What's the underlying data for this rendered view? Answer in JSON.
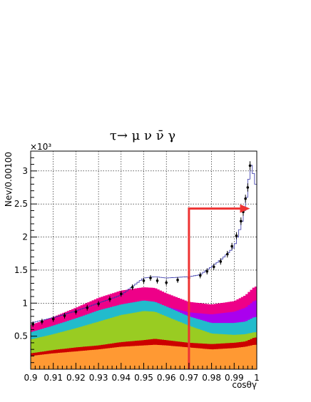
{
  "chart_data": {
    "type": "area",
    "title": "τ→ μ ν ν̄ γ",
    "xlabel": "cosθγ",
    "ylabel": "Nev/0.00100",
    "y_multiplier": "×10³",
    "xlim": [
      0.9,
      1.0
    ],
    "ylim": [
      0,
      3.3
    ],
    "grid": true,
    "x_ticks": [
      "0.9",
      "0.91",
      "0.92",
      "0.93",
      "0.94",
      "0.95",
      "0.96",
      "0.97",
      "0.98",
      "0.99",
      "1"
    ],
    "y_ticks": [
      "0.5",
      "1",
      "1.5",
      "2",
      "2.5",
      "3"
    ],
    "x": [
      0.9,
      0.91,
      0.92,
      0.93,
      0.94,
      0.95,
      0.955,
      0.96,
      0.97,
      0.98,
      0.99,
      0.995,
      0.999
    ],
    "stack_colors": [
      "#ff9933",
      "#cc0000",
      "#99cc22",
      "#22bbcc",
      "#aa00ee",
      "#ee0088"
    ],
    "stack_tops": [
      [
        0.2,
        0.24,
        0.27,
        0.3,
        0.34,
        0.36,
        0.37,
        0.36,
        0.33,
        0.3,
        0.32,
        0.34,
        0.37
      ],
      [
        0.24,
        0.29,
        0.33,
        0.36,
        0.41,
        0.44,
        0.46,
        0.44,
        0.4,
        0.38,
        0.4,
        0.42,
        0.48
      ],
      [
        0.45,
        0.53,
        0.62,
        0.72,
        0.82,
        0.88,
        0.87,
        0.8,
        0.66,
        0.54,
        0.52,
        0.53,
        0.56
      ],
      [
        0.56,
        0.66,
        0.77,
        0.89,
        0.98,
        1.04,
        1.02,
        0.95,
        0.8,
        0.7,
        0.7,
        0.72,
        0.79
      ],
      [
        0.56,
        0.66,
        0.77,
        0.89,
        0.98,
        1.04,
        1.02,
        0.95,
        0.86,
        0.83,
        0.87,
        0.93,
        1.04
      ],
      [
        0.67,
        0.79,
        0.93,
        1.08,
        1.19,
        1.24,
        1.23,
        1.15,
        1.02,
        0.98,
        1.03,
        1.12,
        1.25
      ]
    ],
    "mc_outline": [
      [
        0.9,
        0.7
      ],
      [
        0.91,
        0.78
      ],
      [
        0.92,
        0.88
      ],
      [
        0.93,
        1.0
      ],
      [
        0.94,
        1.12
      ],
      [
        0.95,
        1.38
      ],
      [
        0.955,
        1.4
      ],
      [
        0.96,
        1.38
      ],
      [
        0.97,
        1.4
      ],
      [
        0.975,
        1.43
      ],
      [
        0.98,
        1.55
      ],
      [
        0.985,
        1.68
      ],
      [
        0.99,
        1.85
      ],
      [
        0.992,
        2.05
      ],
      [
        0.994,
        2.3
      ],
      [
        0.996,
        2.7
      ],
      [
        0.997,
        3.05
      ],
      [
        0.998,
        3.12
      ],
      [
        0.999,
        2.8
      ]
    ],
    "data_points": [
      [
        0.901,
        0.68
      ],
      [
        0.905,
        0.72
      ],
      [
        0.91,
        0.76
      ],
      [
        0.915,
        0.81
      ],
      [
        0.92,
        0.87
      ],
      [
        0.925,
        0.93
      ],
      [
        0.93,
        0.99
      ],
      [
        0.935,
        1.06
      ],
      [
        0.94,
        1.14
      ],
      [
        0.945,
        1.24
      ],
      [
        0.95,
        1.34
      ],
      [
        0.953,
        1.38
      ],
      [
        0.956,
        1.34
      ],
      [
        0.96,
        1.31
      ],
      [
        0.965,
        1.35
      ],
      [
        0.97,
        1.38
      ],
      [
        0.975,
        1.42
      ],
      [
        0.978,
        1.48
      ],
      [
        0.981,
        1.55
      ],
      [
        0.984,
        1.63
      ],
      [
        0.987,
        1.74
      ],
      [
        0.989,
        1.86
      ],
      [
        0.991,
        2.02
      ],
      [
        0.993,
        2.24
      ],
      [
        0.994,
        2.38
      ],
      [
        0.995,
        2.58
      ],
      [
        0.996,
        2.75
      ],
      [
        0.997,
        3.08
      ]
    ],
    "cut_arrow": {
      "x": 0.97,
      "y": 2.43,
      "x_end": 0.997,
      "color": "#ee3333"
    }
  }
}
